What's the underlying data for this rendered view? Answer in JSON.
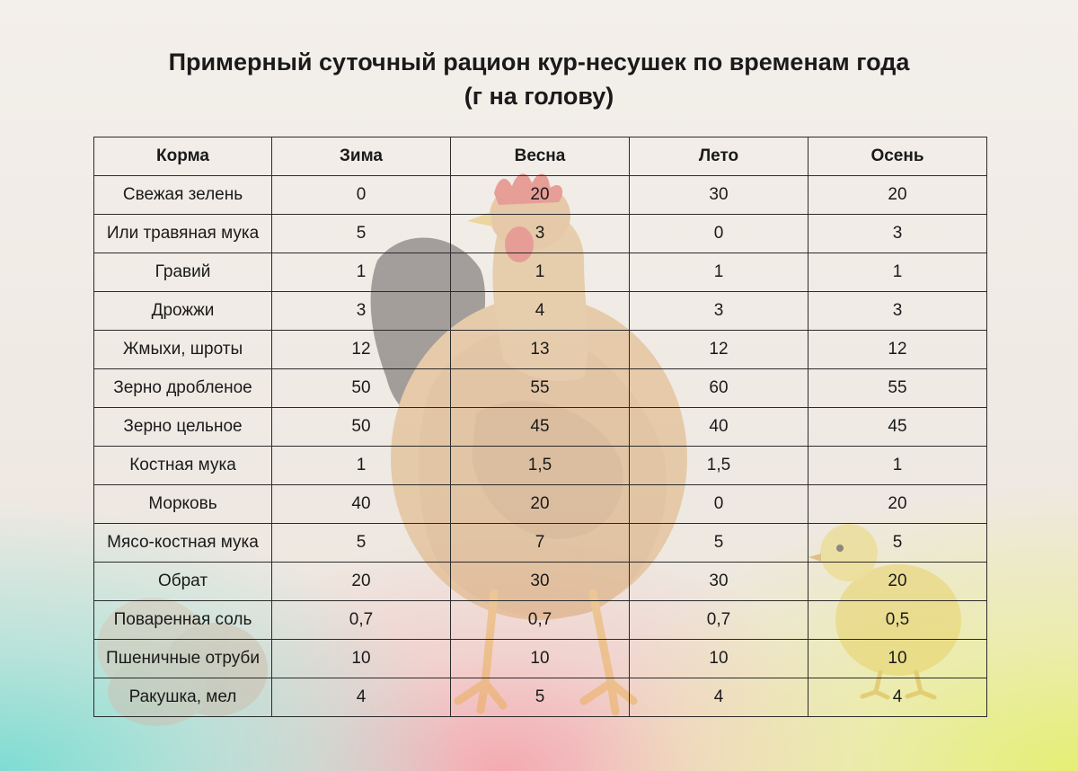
{
  "title": {
    "line1": "Примерный суточный рацион кур-несушек по временам года",
    "line2": "(г на голову)"
  },
  "table": {
    "headers": [
      "Корма",
      "Зима",
      "Весна",
      "Лето",
      "Осень"
    ],
    "rows": [
      [
        "Свежая зелень",
        "0",
        "20",
        "30",
        "20"
      ],
      [
        "Или травяная мука",
        "5",
        "3",
        "0",
        "3"
      ],
      [
        "Гравий",
        "1",
        "1",
        "1",
        "1"
      ],
      [
        "Дрожжи",
        "3",
        "4",
        "3",
        "3"
      ],
      [
        "Жмыхи, шроты",
        "12",
        "13",
        "12",
        "12"
      ],
      [
        "Зерно дробленое",
        "50",
        "55",
        "60",
        "55"
      ],
      [
        "Зерно цельное",
        "50",
        "45",
        "40",
        "45"
      ],
      [
        "Костная мука",
        "1",
        "1,5",
        "1,5",
        "1"
      ],
      [
        "Морковь",
        "40",
        "20",
        "0",
        "20"
      ],
      [
        "Мясо-костная мука",
        "5",
        "7",
        "5",
        "5"
      ],
      [
        "Обрат",
        "20",
        "30",
        "30",
        "20"
      ],
      [
        "Поваренная соль",
        "0,7",
        "0,7",
        "0,7",
        "0,5"
      ],
      [
        "Пшеничные отруби",
        "10",
        "10",
        "10",
        "10"
      ],
      [
        "Ракушка, мел",
        "4",
        "5",
        "4",
        "4"
      ]
    ]
  },
  "colors": {
    "text": "#1a1a1a",
    "border": "#2b2b2b",
    "hen_body": "#d9a05a",
    "hen_comb": "#d8322a",
    "chick": "#e8d060"
  },
  "images": {
    "hen": "hen-picture",
    "chick": "chick-picture",
    "eggs": "eggs-picture"
  }
}
